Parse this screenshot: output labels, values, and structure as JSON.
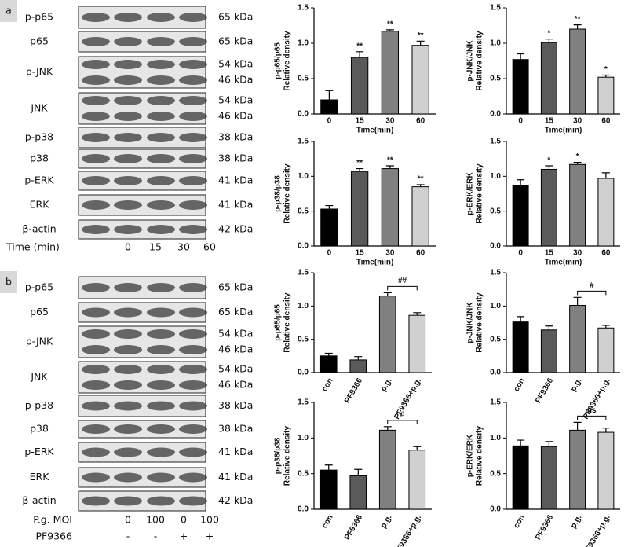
{
  "panel_labels": [
    "a",
    "b"
  ],
  "blot_panels": [
    {
      "rows": [
        {
          "name": "p-p65",
          "kda": [
            "65 kDa"
          ]
        },
        {
          "name": "p65",
          "kda": [
            "65 kDa"
          ]
        },
        {
          "name": "p-JNK",
          "kda": [
            "54 kDa",
            "46 kDa"
          ]
        },
        {
          "name": "JNK",
          "kda": [
            "54 kDa",
            "46 kDa"
          ]
        },
        {
          "name": "p-p38",
          "kda": [
            "38 kDa"
          ]
        },
        {
          "name": "p38",
          "kda": [
            "38 kDa"
          ]
        },
        {
          "name": "p-ERK",
          "kda": [
            "41 kDa"
          ]
        },
        {
          "name": "ERK",
          "kda": [
            "41 kDa"
          ]
        },
        {
          "name": "β-actin",
          "kda": [
            "42 kDa"
          ]
        }
      ],
      "lanes": [
        {
          "label": "Time (min)",
          "values": [
            "0",
            "15",
            "30",
            "60"
          ]
        }
      ]
    },
    {
      "rows": [
        {
          "name": "p-p65",
          "kda": [
            "65 kDa"
          ]
        },
        {
          "name": "p65",
          "kda": [
            "65 kDa"
          ]
        },
        {
          "name": "p-JNK",
          "kda": [
            "54 kDa",
            "46 kDa"
          ]
        },
        {
          "name": "JNK",
          "kda": [
            "54 kDa",
            "46 kDa"
          ]
        },
        {
          "name": "p-p38",
          "kda": [
            "38 kDa"
          ]
        },
        {
          "name": "p38",
          "kda": [
            "38 kDa"
          ]
        },
        {
          "name": "p-ERK",
          "kda": [
            "41 kDa"
          ]
        },
        {
          "name": "ERK",
          "kda": [
            "41 kDa"
          ]
        },
        {
          "name": "β-actin",
          "kda": [
            "42 kDa"
          ]
        }
      ],
      "lanes": [
        {
          "label": "P.g. MOI",
          "values": [
            "0",
            "100",
            "0",
            "100"
          ]
        },
        {
          "label": "PF9366",
          "values": [
            "-",
            "-",
            "+",
            "+"
          ]
        }
      ]
    }
  ],
  "chart_data": [
    {
      "type": "bar",
      "ylabel": [
        "p-p65/p65",
        "Relative density"
      ],
      "xlabel": "Time(min)",
      "categories": [
        "0",
        "15",
        "30",
        "60"
      ],
      "values": [
        0.2,
        0.8,
        1.17,
        0.97
      ],
      "errors": [
        0.13,
        0.08,
        0.02,
        0.06
      ],
      "bar_labels": [
        null,
        "**",
        "**",
        "**"
      ],
      "colors": [
        "#000000",
        "#5a5a5a",
        "#808080",
        "#d0d0d0"
      ],
      "ylim": [
        0,
        1.5
      ],
      "yticks": [
        {
          "value": 0,
          "label": "0.0"
        },
        {
          "value": 0.5,
          "label": "0.5"
        },
        {
          "value": 1,
          "label": "1.0"
        },
        {
          "value": 1.5,
          "label": "1.5"
        }
      ]
    },
    {
      "type": "bar",
      "ylabel": [
        "p-JNK/JNK",
        "Relative density"
      ],
      "xlabel": "Time(min)",
      "categories": [
        "0",
        "15",
        "30",
        "60"
      ],
      "values": [
        0.77,
        1.01,
        1.2,
        0.52
      ],
      "errors": [
        0.08,
        0.05,
        0.06,
        0.03
      ],
      "bar_labels": [
        null,
        "*",
        "**",
        "*"
      ],
      "colors": [
        "#000000",
        "#5a5a5a",
        "#808080",
        "#d0d0d0"
      ],
      "ylim": [
        0,
        1.5
      ],
      "yticks": [
        {
          "value": 0,
          "label": "0.0"
        },
        {
          "value": 0.5,
          "label": "0.5"
        },
        {
          "value": 1,
          "label": "1.0"
        },
        {
          "value": 1.5,
          "label": "1.5"
        }
      ]
    },
    {
      "type": "bar",
      "ylabel": [
        "p-p38/p38",
        "Relative density"
      ],
      "xlabel": "Time(min)",
      "categories": [
        "0",
        "15",
        "30",
        "60"
      ],
      "values": [
        0.53,
        1.07,
        1.11,
        0.85
      ],
      "errors": [
        0.05,
        0.04,
        0.04,
        0.03
      ],
      "bar_labels": [
        null,
        "**",
        "**",
        "**"
      ],
      "colors": [
        "#000000",
        "#5a5a5a",
        "#808080",
        "#d0d0d0"
      ],
      "ylim": [
        0,
        1.5
      ],
      "yticks": [
        {
          "value": 0,
          "label": "0.0"
        },
        {
          "value": 0.5,
          "label": "0.5"
        },
        {
          "value": 1,
          "label": "1.0"
        },
        {
          "value": 1.5,
          "label": "1.5"
        }
      ]
    },
    {
      "type": "bar",
      "ylabel": [
        "p-ERK/ERK",
        "Relative density"
      ],
      "xlabel": "Time(min)",
      "categories": [
        "0",
        "15",
        "30",
        "60"
      ],
      "values": [
        0.87,
        1.1,
        1.17,
        0.97
      ],
      "errors": [
        0.08,
        0.05,
        0.03,
        0.08
      ],
      "bar_labels": [
        null,
        "*",
        "*",
        null
      ],
      "colors": [
        "#000000",
        "#5a5a5a",
        "#808080",
        "#d0d0d0"
      ],
      "ylim": [
        0,
        1.5
      ],
      "yticks": [
        {
          "value": 0,
          "label": "0.0"
        },
        {
          "value": 0.5,
          "label": "0.5"
        },
        {
          "value": 1,
          "label": "1.0"
        },
        {
          "value": 1.5,
          "label": "1.5"
        }
      ]
    },
    {
      "type": "bar",
      "ylabel": [
        "p-p65/p65",
        "Relative density"
      ],
      "categories": [
        "con",
        "PF9366",
        "p.g.",
        "PF9366+p.g."
      ],
      "values": [
        0.25,
        0.19,
        1.15,
        0.86
      ],
      "errors": [
        0.04,
        0.05,
        0.05,
        0.04
      ],
      "bracket_label": "##",
      "colors": [
        "#000000",
        "#5a5a5a",
        "#808080",
        "#d0d0d0"
      ],
      "ylim": [
        0,
        1.5
      ],
      "yticks": [
        {
          "value": 0,
          "label": "0.0"
        },
        {
          "value": 0.5,
          "label": "0.5"
        },
        {
          "value": 1,
          "label": "1.0"
        },
        {
          "value": 1.5,
          "label": "1.5"
        }
      ]
    },
    {
      "type": "bar",
      "ylabel": [
        "p-JNK/JNK",
        "Relative density"
      ],
      "categories": [
        "con",
        "PF9366",
        "p.g.",
        "PF9366+p.g."
      ],
      "values": [
        0.76,
        0.64,
        1.01,
        0.67
      ],
      "errors": [
        0.08,
        0.06,
        0.12,
        0.04
      ],
      "bracket_label": "#",
      "colors": [
        "#000000",
        "#5a5a5a",
        "#808080",
        "#d0d0d0"
      ],
      "ylim": [
        0,
        1.5
      ],
      "yticks": [
        {
          "value": 0,
          "label": "0.0"
        },
        {
          "value": 0.5,
          "label": "0.5"
        },
        {
          "value": 1,
          "label": "1.0"
        },
        {
          "value": 1.5,
          "label": "1.5"
        }
      ]
    },
    {
      "type": "bar",
      "ylabel": [
        "p-p38/p38",
        "Relative density"
      ],
      "categories": [
        "con",
        "PF9366",
        "p.g.",
        "PF9366+p.g."
      ],
      "values": [
        0.55,
        0.47,
        1.11,
        0.83
      ],
      "errors": [
        0.07,
        0.09,
        0.05,
        0.05
      ],
      "bracket_label": "#",
      "colors": [
        "#000000",
        "#5a5a5a",
        "#808080",
        "#d0d0d0"
      ],
      "ylim": [
        0,
        1.5
      ],
      "yticks": [
        {
          "value": 0,
          "label": "0.0"
        },
        {
          "value": 0.5,
          "label": "0.5"
        },
        {
          "value": 1,
          "label": "1.0"
        },
        {
          "value": 1.5,
          "label": "1.5"
        }
      ]
    },
    {
      "type": "bar",
      "ylabel": [
        "p-ERK/ERK",
        "Relative density"
      ],
      "categories": [
        "con",
        "PF9366",
        "p.g.",
        "PF9366+p.g."
      ],
      "values": [
        0.89,
        0.88,
        1.11,
        1.08
      ],
      "errors": [
        0.08,
        0.07,
        0.11,
        0.06
      ],
      "bracket_label": "ns",
      "colors": [
        "#000000",
        "#5a5a5a",
        "#808080",
        "#d0d0d0"
      ],
      "ylim": [
        0,
        1.5
      ],
      "yticks": [
        {
          "value": 0,
          "label": "0.0"
        },
        {
          "value": 0.5,
          "label": "0.5"
        },
        {
          "value": 1,
          "label": "1.0"
        },
        {
          "value": 1.5,
          "label": "1.5"
        }
      ]
    }
  ]
}
